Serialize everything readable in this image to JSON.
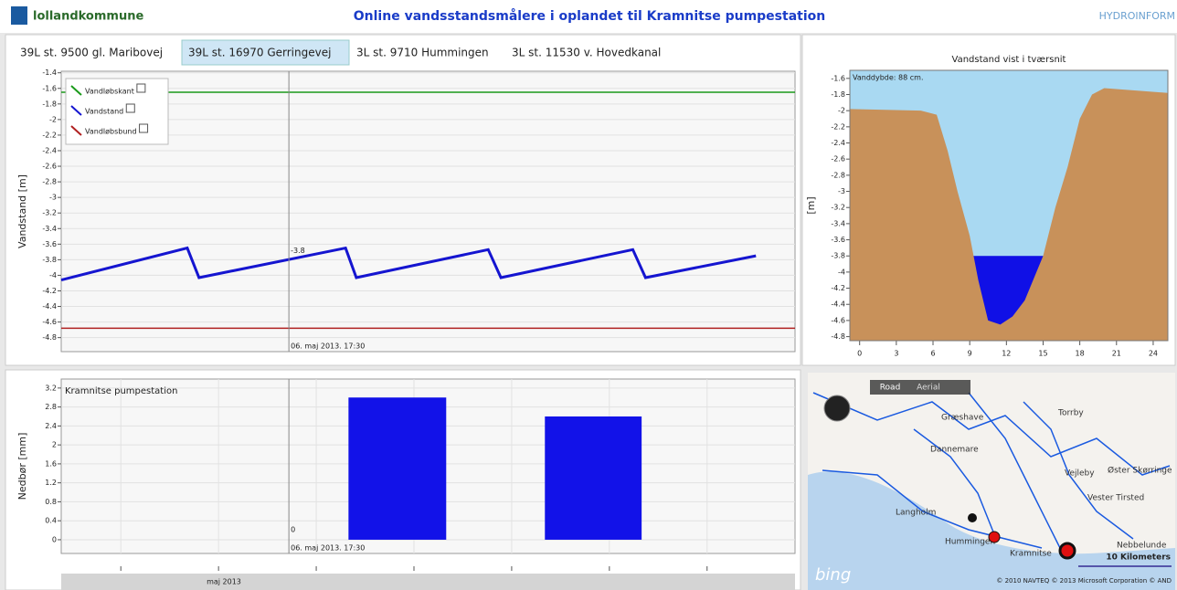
{
  "header": {
    "logo": "lollandkommune",
    "title": "Online vandsstandsmålere i oplandet til Kramnitse pumpestation",
    "brand": "HYDROINFORM"
  },
  "tabs": [
    "39L st. 9500 gl. Maribovej",
    "39L st. 16970 Gerringevej",
    "3L st. 9710 Hummingen",
    "3L st. 11530 v. Hovedkanal"
  ],
  "chart_data": [
    {
      "type": "line",
      "ylabel": "Vandstand [m]",
      "xlim": [
        4.39,
        11.9
      ],
      "ylim": [
        -4.98,
        -1.38
      ],
      "yticks": [
        -1.4,
        -1.6,
        -1.8,
        -2,
        -2.2,
        -2.4,
        -2.6,
        -2.8,
        -3,
        -3.2,
        -3.4,
        -3.6,
        -3.8,
        -4,
        -4.2,
        -4.4,
        -4.6,
        -4.8
      ],
      "grid": true,
      "series": [
        {
          "name": "Vandløbskant",
          "color": "#1a9a1a",
          "x": [
            4.39,
            11.9
          ],
          "values": [
            -1.65,
            -1.65
          ]
        },
        {
          "name": "Vandstand",
          "color": "#1515d0",
          "x": [
            4.39,
            5.68,
            5.8,
            7.3,
            7.41,
            8.76,
            8.89,
            10.24,
            10.37,
            11.5
          ],
          "values": [
            -4.06,
            -3.65,
            -4.03,
            -3.65,
            -4.03,
            -3.67,
            -4.03,
            -3.67,
            -4.03,
            -3.75
          ]
        },
        {
          "name": "Vandløbsbund",
          "color": "#b02020",
          "x": [
            4.39,
            11.9
          ],
          "values": [
            -4.68,
            -4.68
          ]
        }
      ],
      "cursor_x": 6.72,
      "cursor_value": -3.8,
      "cursor_time": "06. maj 2013. 17:30"
    },
    {
      "type": "area",
      "title": "Vandstand vist i tværsnit",
      "annotation": "Vanddybde: 88 cm.",
      "ylabel": "[m]",
      "xlim": [
        -0.8,
        25.2
      ],
      "ylim": [
        -4.85,
        -1.5
      ],
      "xticks": [
        0,
        3,
        6,
        9,
        12,
        15,
        18,
        21,
        24
      ],
      "yticks": [
        -1.6,
        -1.8,
        -2,
        -2.2,
        -2.4,
        -2.6,
        -2.8,
        -3,
        -3.2,
        -3.4,
        -3.6,
        -3.8,
        -4,
        -4.2,
        -4.4,
        -4.6,
        -4.8
      ],
      "x": [
        -0.8,
        5,
        6.3,
        7.2,
        8,
        9,
        9.7,
        10.5,
        11.5,
        12.5,
        13.5,
        15,
        16,
        17,
        18,
        19,
        20,
        25.2
      ],
      "values": [
        -1.98,
        -2,
        -2.05,
        -2.5,
        -3,
        -3.55,
        -4.1,
        -4.6,
        -4.65,
        -4.55,
        -4.35,
        -3.8,
        -3.2,
        -2.7,
        -2.1,
        -1.8,
        -1.72,
        -1.78
      ],
      "water_level": -3.8,
      "sky_color": "#a9d9f2",
      "terrain_color": "#c8915a",
      "water_color": "#1010e6"
    },
    {
      "type": "bar",
      "title": "Kramnitse pumpestation",
      "ylabel": "Nedbør [mm]",
      "xlabel": "maj 2013",
      "xlim": [
        4.39,
        11.9
      ],
      "ylim": [
        -0.29,
        3.39
      ],
      "xticks": [
        5,
        6,
        7,
        8,
        9,
        10,
        11
      ],
      "yticks": [
        0,
        0.4,
        0.8,
        1.2,
        1.6,
        2,
        2.4,
        2.8,
        3.2
      ],
      "grid": true,
      "color": "#1212e8",
      "x_edges": [
        [
          7.33,
          8.33
        ],
        [
          9.34,
          10.33
        ]
      ],
      "values": [
        3.0,
        2.6
      ],
      "cursor_x": 6.72,
      "cursor_value": 0,
      "cursor_time": "06. maj 2013. 17:30"
    }
  ],
  "map": {
    "buttons": [
      "Road",
      "Aerial"
    ],
    "places": [
      "Græshave",
      "Dannemare",
      "Torrby",
      "Vejleby",
      "Øster Skørringe",
      "Vester Tirsted",
      "Langholm",
      "Hummingen",
      "Kramnitse",
      "Nebbelunde"
    ],
    "scale": "10 Kilometers",
    "brand": "bing",
    "copyright": "© 2010 NAVTEQ  © 2013 Microsoft Corporation  © AND"
  }
}
